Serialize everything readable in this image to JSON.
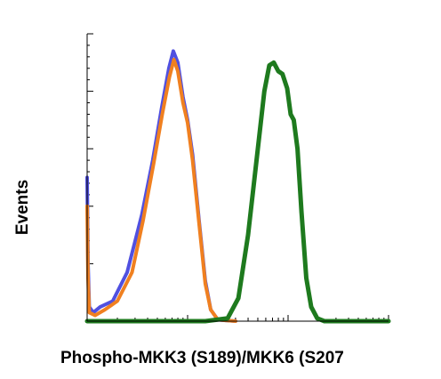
{
  "chart_data": {
    "type": "line",
    "title": "",
    "xlabel": "Phospho-MKK3 (S189)/MKK6 (S207",
    "ylabel": "Events",
    "x_scale": "log",
    "xlim": [
      0.1,
      100
    ],
    "ylim": [
      0,
      1
    ],
    "grid": false,
    "legend": "none",
    "series": [
      {
        "color": "#5050e0",
        "points": [
          [
            0.1,
            0.5
          ],
          [
            0.102,
            0.2
          ],
          [
            0.105,
            0.05
          ],
          [
            0.115,
            0.03
          ],
          [
            0.135,
            0.05
          ],
          [
            0.18,
            0.07
          ],
          [
            0.25,
            0.17
          ],
          [
            0.35,
            0.37
          ],
          [
            0.45,
            0.56
          ],
          [
            0.55,
            0.74
          ],
          [
            0.65,
            0.88
          ],
          [
            0.72,
            0.94
          ],
          [
            0.8,
            0.9
          ],
          [
            0.9,
            0.78
          ],
          [
            1.0,
            0.7
          ],
          [
            1.12,
            0.58
          ],
          [
            1.3,
            0.35
          ],
          [
            1.5,
            0.14
          ],
          [
            1.7,
            0.04
          ],
          [
            2.0,
            0.005
          ],
          [
            3.0,
            0
          ]
        ]
      },
      {
        "color": "#f08020",
        "points": [
          [
            0.1,
            0.4
          ],
          [
            0.102,
            0.15
          ],
          [
            0.105,
            0.03
          ],
          [
            0.12,
            0.02
          ],
          [
            0.15,
            0.04
          ],
          [
            0.2,
            0.07
          ],
          [
            0.28,
            0.17
          ],
          [
            0.36,
            0.35
          ],
          [
            0.46,
            0.55
          ],
          [
            0.56,
            0.72
          ],
          [
            0.66,
            0.85
          ],
          [
            0.73,
            0.91
          ],
          [
            0.8,
            0.87
          ],
          [
            0.9,
            0.76
          ],
          [
            1.0,
            0.69
          ],
          [
            1.12,
            0.56
          ],
          [
            1.3,
            0.34
          ],
          [
            1.5,
            0.13
          ],
          [
            1.7,
            0.04
          ],
          [
            2.0,
            0.005
          ],
          [
            3.0,
            0
          ]
        ]
      },
      {
        "color": "#1e7a1e",
        "points": [
          [
            0.1,
            0
          ],
          [
            1.5,
            0
          ],
          [
            2.5,
            0.01
          ],
          [
            3.2,
            0.08
          ],
          [
            4.0,
            0.3
          ],
          [
            5.0,
            0.6
          ],
          [
            5.8,
            0.8
          ],
          [
            6.5,
            0.89
          ],
          [
            7.2,
            0.9
          ],
          [
            8.0,
            0.87
          ],
          [
            8.8,
            0.86
          ],
          [
            9.8,
            0.81
          ],
          [
            10.6,
            0.72
          ],
          [
            11.4,
            0.7
          ],
          [
            12.4,
            0.6
          ],
          [
            13.6,
            0.38
          ],
          [
            15.2,
            0.15
          ],
          [
            17.0,
            0.05
          ],
          [
            19.5,
            0.01
          ],
          [
            23.0,
            0
          ],
          [
            100,
            0
          ]
        ]
      }
    ]
  }
}
